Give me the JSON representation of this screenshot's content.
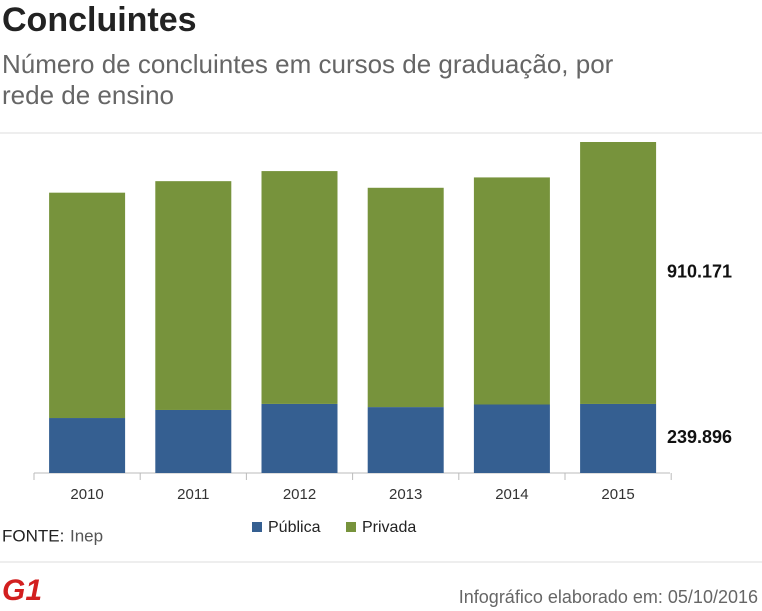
{
  "header": {
    "title": "Concluintes",
    "subtitle_lines": [
      "Número de concluintes em cursos de graduação, por",
      "rede de ensino"
    ]
  },
  "chart_data": {
    "type": "stacked-bar",
    "categories": [
      "2010",
      "2011",
      "2012",
      "2013",
      "2014",
      "2015"
    ],
    "series": [
      {
        "name": "Pública",
        "color": "#355f91",
        "values": [
          191000,
          219000,
          240000,
          229000,
          238000,
          239896
        ],
        "value_labels": [
          null,
          null,
          null,
          null,
          null,
          "239.896"
        ]
      },
      {
        "name": "Privada",
        "color": "#77933c",
        "values": [
          783000,
          795000,
          809000,
          762000,
          789000,
          910171
        ],
        "value_labels": [
          null,
          null,
          null,
          null,
          null,
          "910.171"
        ]
      }
    ]
  },
  "source": {
    "label": "FONTE:",
    "text": "Inep"
  },
  "footer": {
    "logo": "G1",
    "text": "Infográfico elaborado em: 05/10/2016"
  }
}
